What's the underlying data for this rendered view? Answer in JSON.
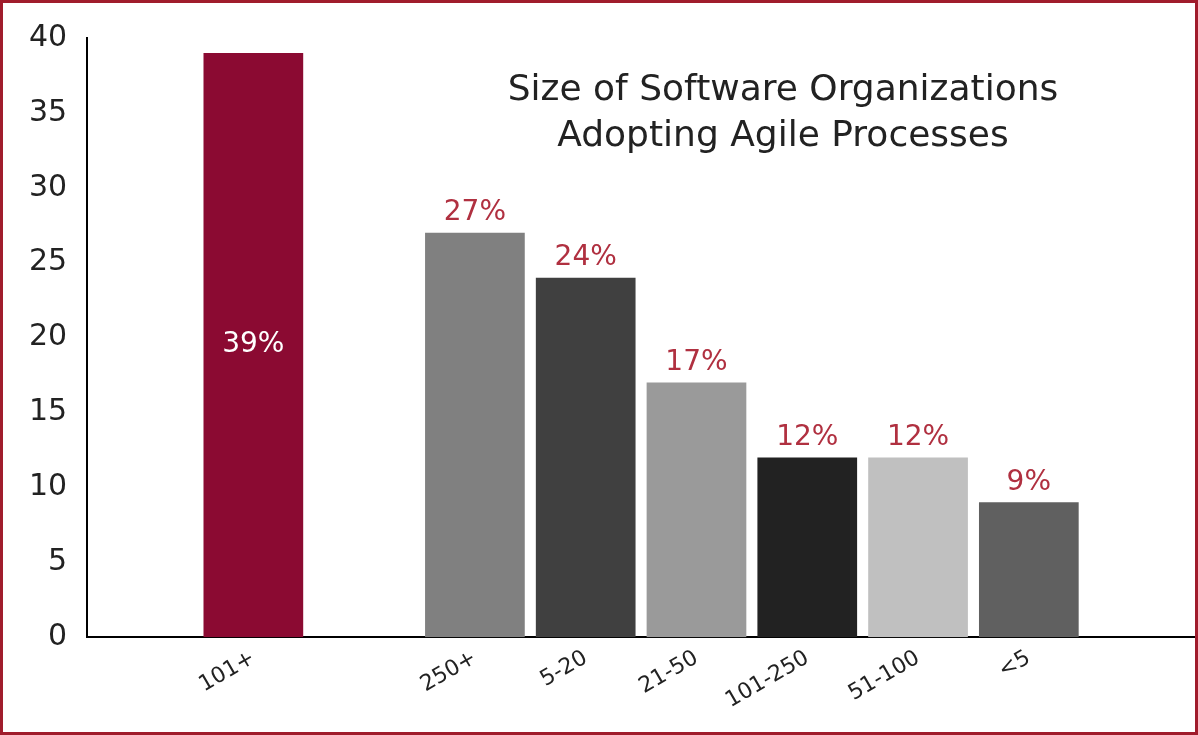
{
  "chart_data": {
    "type": "bar",
    "title": "Size of Software Organizations Adopting Agile Processes",
    "categories": [
      null,
      "101+",
      null,
      "250+",
      "5-20",
      "21-50",
      "101-250",
      "51-100",
      "<5",
      null
    ],
    "values": [
      null,
      39,
      null,
      27,
      24,
      17,
      12,
      12,
      9,
      null
    ],
    "colors": [
      "#808080",
      "#8b0a32",
      "#808080",
      "#808080",
      "#404040",
      "#9a9a9a",
      "#222222",
      "#c0c0c0",
      "#606060",
      "#808080"
    ],
    "value_labels": [
      null,
      "39%",
      null,
      "27%",
      "24%",
      "17%",
      "12%",
      "12%",
      "9%",
      null
    ],
    "ylim": [
      0,
      40
    ],
    "yticks": [
      0,
      5,
      10,
      15,
      20,
      25,
      30,
      35,
      40
    ],
    "grid": false,
    "legend": false
  }
}
